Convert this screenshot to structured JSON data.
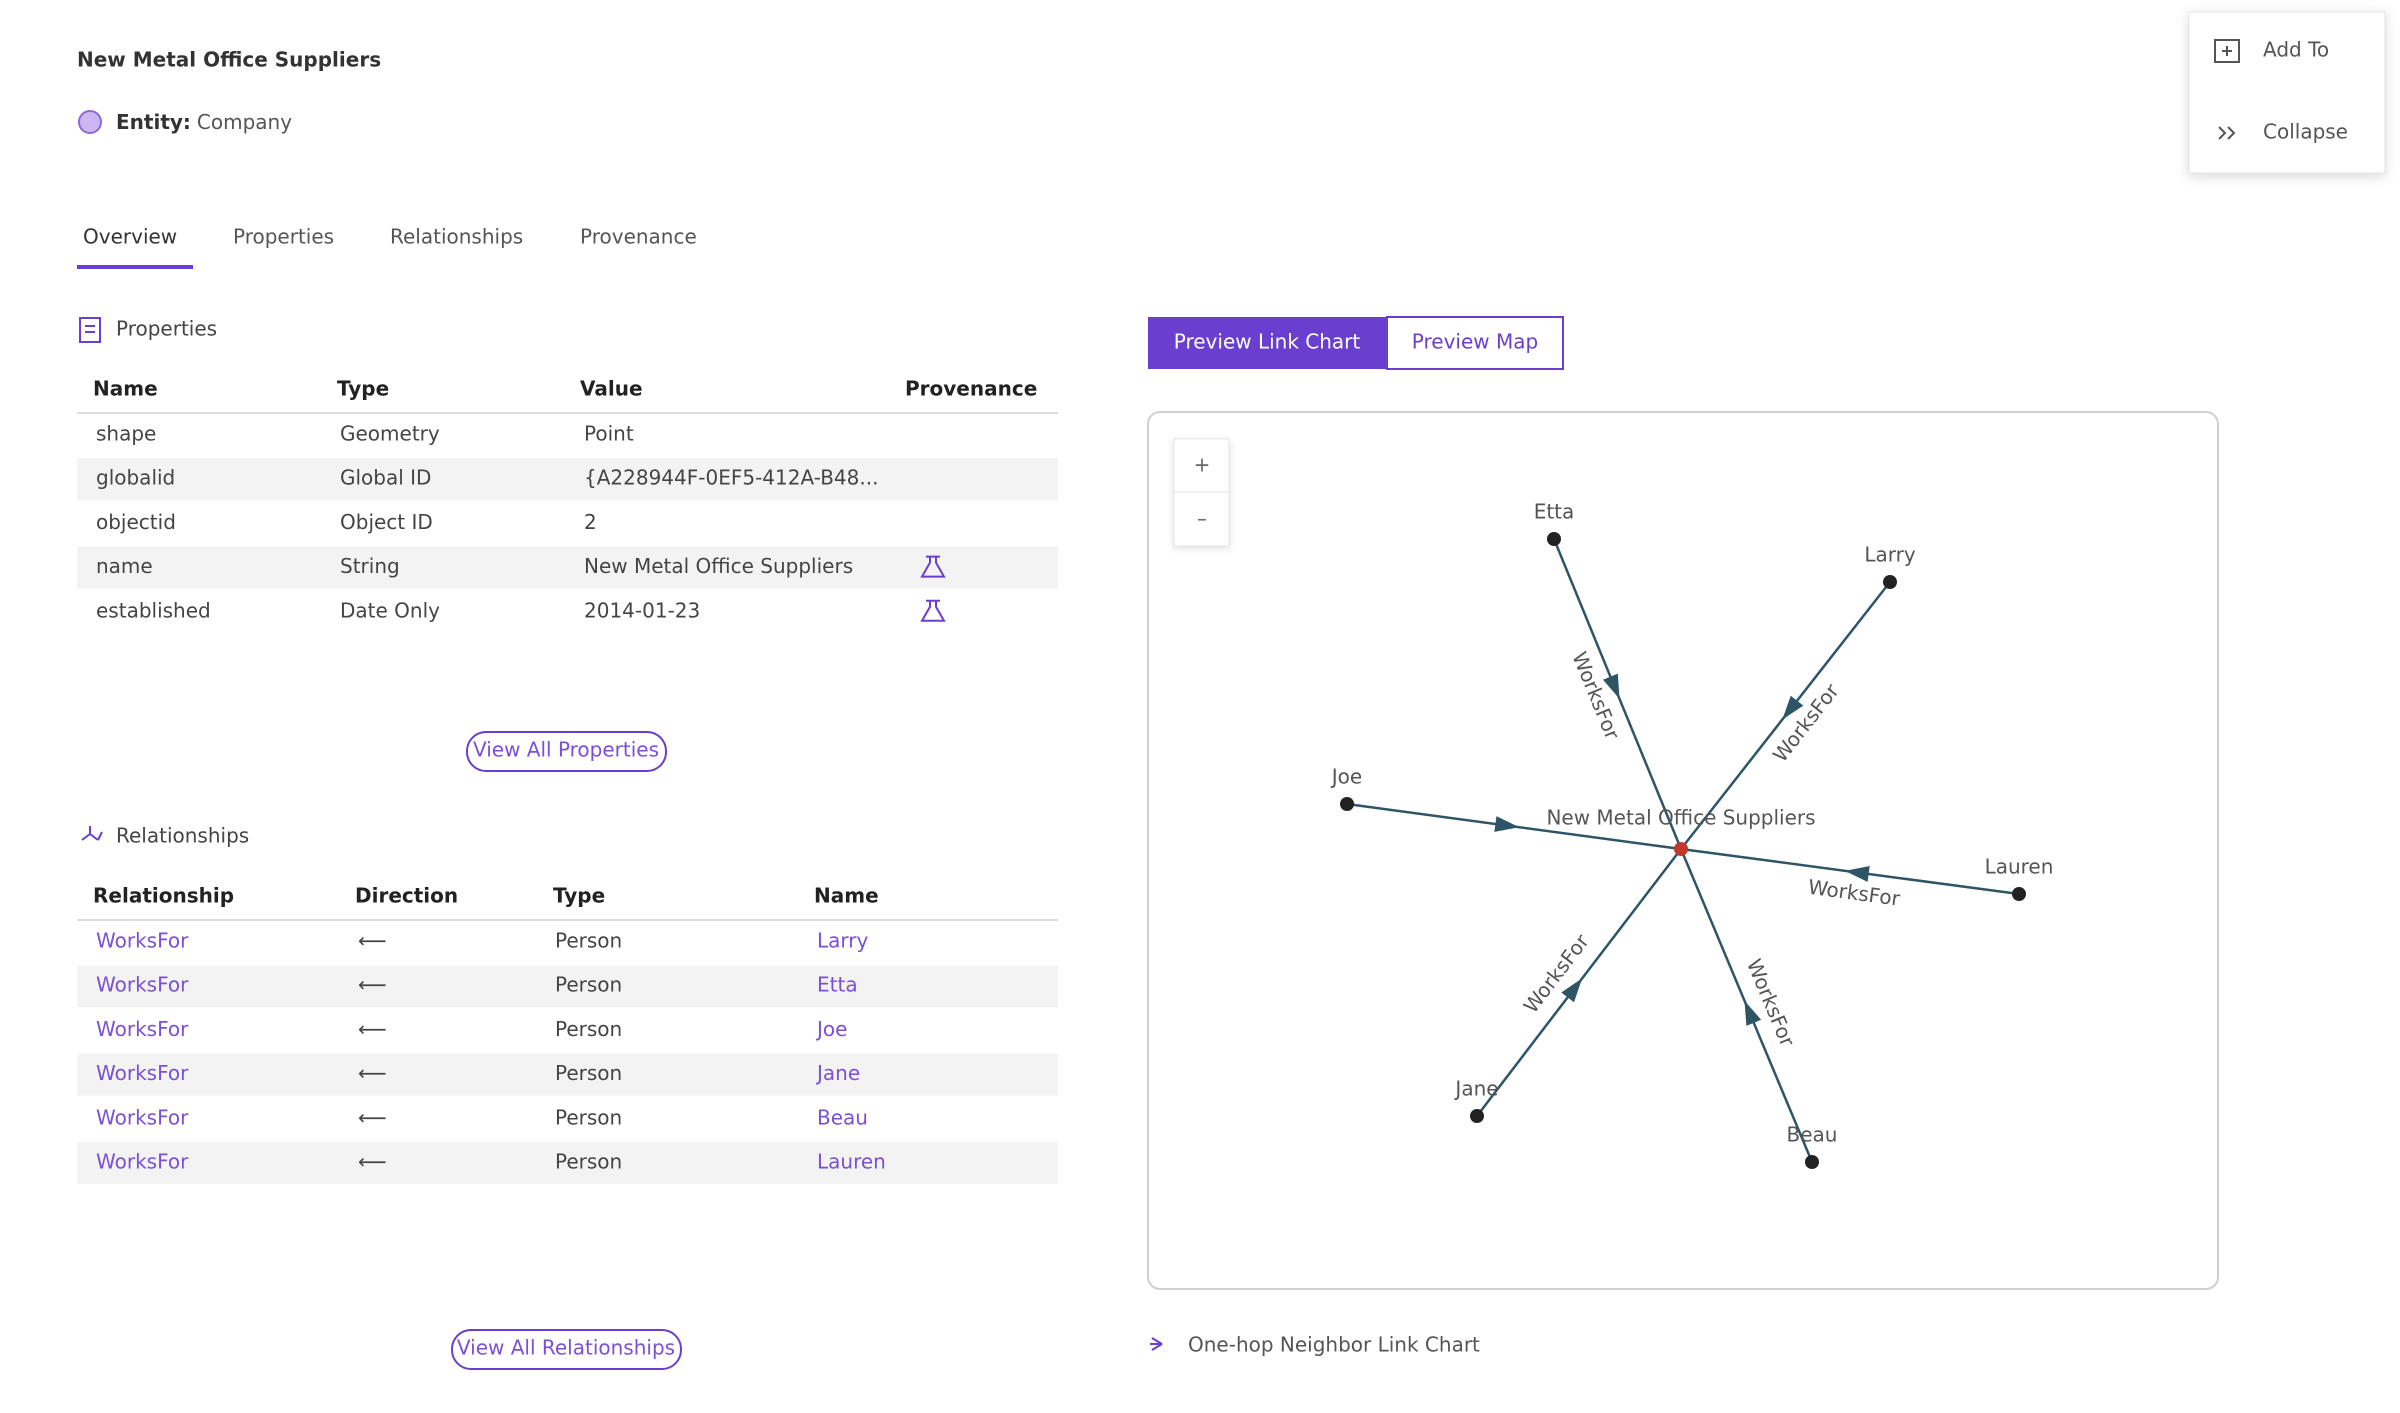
{
  "header": {
    "title": "New Metal Office Suppliers",
    "entity_label": "Entity:",
    "entity_value": "Company"
  },
  "tabs": [
    "Overview",
    "Properties",
    "Relationships",
    "Provenance"
  ],
  "properties": {
    "heading": "Properties",
    "columns": [
      "Name",
      "Type",
      "Value",
      "Provenance"
    ],
    "rows": [
      {
        "cells": [
          "shape",
          "Geometry",
          "Point"
        ],
        "provenance": false
      },
      {
        "cells": [
          "globalid",
          "Global ID",
          "{A228944F-0EF5-412A-B48..."
        ],
        "provenance": false
      },
      {
        "cells": [
          "objectid",
          "Object ID",
          "2"
        ],
        "provenance": false
      },
      {
        "cells": [
          "name",
          "String",
          "New Metal Office Suppliers"
        ],
        "provenance": true
      },
      {
        "cells": [
          "established",
          "Date Only",
          "2014-01-23"
        ],
        "provenance": true
      }
    ],
    "button": "View All Properties"
  },
  "relationships": {
    "heading": "Relationships",
    "columns": [
      "Relationship",
      "Direction",
      "Type",
      "Name"
    ],
    "rows": [
      [
        "WorksFor",
        "⟵",
        "Person",
        "Larry"
      ],
      [
        "WorksFor",
        "⟵",
        "Person",
        "Etta"
      ],
      [
        "WorksFor",
        "⟵",
        "Person",
        "Joe"
      ],
      [
        "WorksFor",
        "⟵",
        "Person",
        "Jane"
      ],
      [
        "WorksFor",
        "⟵",
        "Person",
        "Beau"
      ],
      [
        "WorksFor",
        "⟵",
        "Person",
        "Lauren"
      ]
    ],
    "button": "View All Relationships"
  },
  "preview": {
    "buttons": [
      "Preview Link Chart",
      "Preview Map"
    ],
    "zoom": [
      "+",
      "–"
    ],
    "graph": {
      "center": "New Metal Office Suppliers",
      "nodes": [
        {
          "name": "Etta",
          "edge_label": "WorksFor"
        },
        {
          "name": "Larry",
          "edge_label": "WorksFor"
        },
        {
          "name": "Joe"
        },
        {
          "name": "Lauren",
          "edge_label": "WorksFor"
        },
        {
          "name": "Jane",
          "edge_label": "WorksFor"
        },
        {
          "name": "Beau",
          "edge_label": "WorksFor"
        }
      ]
    },
    "caption": "One-hop Neighbor Link Chart"
  },
  "panel": {
    "items": [
      "Add To",
      "Collapse"
    ]
  }
}
